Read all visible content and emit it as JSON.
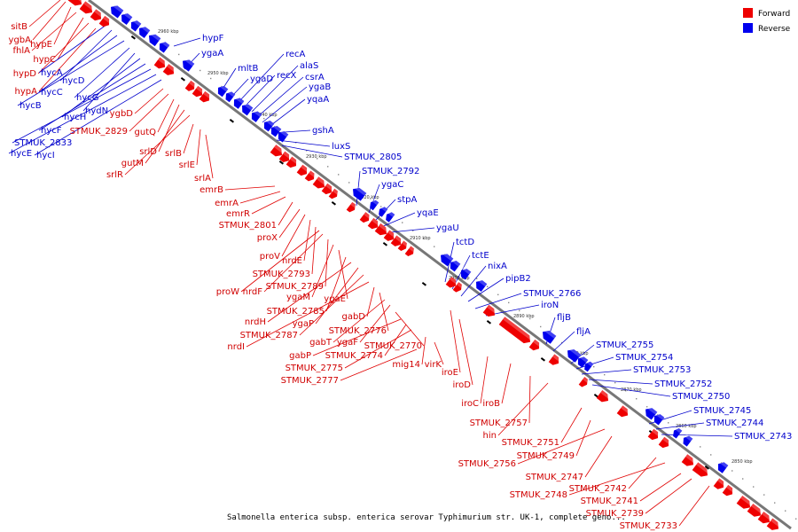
{
  "caption": "Salmonella enterica subsp. enterica serovar Typhimurium str. UK-1, complete geno...",
  "legend": [
    {
      "label": "Forward",
      "color": "#ee0000"
    },
    {
      "label": "Reverse",
      "color": "#0000ee"
    }
  ],
  "colors": {
    "forward": "#ee0000",
    "reverse": "#0000ee",
    "backbone": "#777777",
    "tick": "#000000"
  },
  "kbp_marks": [
    "2960 kbp",
    "2950 kbp",
    "2940 kbp",
    "2930 kbp",
    "2920 kbp",
    "2910 kbp",
    "2900 kbp",
    "2890 kbp",
    "2880 kbp",
    "2870 kbp",
    "2860 kbp",
    "2850 kbp"
  ],
  "forward_labels": [
    "sitB",
    "ygbA",
    "hypE",
    "fhlA",
    "hypC",
    "hypD",
    "hypA",
    "ygbD",
    "STMUK_2829",
    "gutQ",
    "srlD",
    "gutM",
    "srlR",
    "srlB",
    "srlE",
    "srlA",
    "emrB",
    "emrA",
    "emrR",
    "STMUK_2801",
    "proX",
    "proV",
    "nrdE",
    "STMUK_2793",
    "proW",
    "nrdF",
    "STMUK_2789",
    "ygaM",
    "ygaE",
    "STMUK_2785",
    "nrdH",
    "ygaP",
    "STMUK_2787",
    "nrdI",
    "gabD",
    "STMUK_2776",
    "gabT",
    "ygaF",
    "STMUK_2770",
    "gabP",
    "STMUK_2774",
    "STMUK_2775",
    "mig14",
    "virK",
    "STMUK_2777",
    "iroE",
    "iroD",
    "iroC",
    "iroB",
    "STMUK_2757",
    "hin",
    "STMUK_2751",
    "STMUK_2749",
    "STMUK_2756",
    "STMUK_2747",
    "STMUK_2742",
    "STMUK_2748",
    "STMUK_2741",
    "STMUK_2739",
    "STMUK_2733"
  ],
  "reverse_labels": [
    "hycA",
    "hycD",
    "hycC",
    "hycB",
    "hycG",
    "hydN",
    "hycH",
    "hycF",
    "STMUK_2833",
    "hycE",
    "hycI",
    "hypF",
    "ygaA",
    "mltB",
    "ygaD",
    "recA",
    "recX",
    "alaS",
    "csrA",
    "ygaB",
    "yqaA",
    "gshA",
    "luxS",
    "STMUK_2805",
    "STMUK_2792",
    "ygaC",
    "stpA",
    "yqaE",
    "ygaU",
    "tctD",
    "tctE",
    "nixA",
    "pipB2",
    "STMUK_2766",
    "iroN",
    "fljB",
    "fljA",
    "STMUK_2755",
    "STMUK_2754",
    "STMUK_2753",
    "STMUK_2752",
    "STMUK_2750",
    "STMUK_2745",
    "STMUK_2744",
    "STMUK_2743"
  ]
}
